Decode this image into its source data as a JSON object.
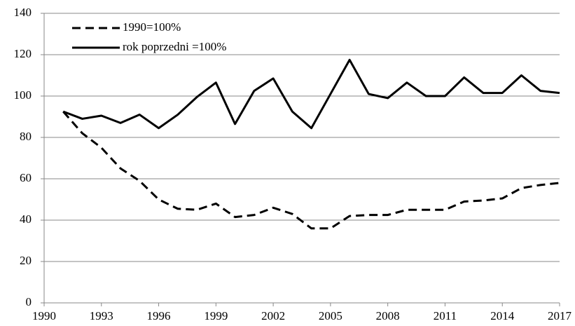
{
  "chart_data": {
    "type": "line",
    "x": [
      1991,
      1992,
      1993,
      1994,
      1995,
      1996,
      1997,
      1998,
      1999,
      2000,
      2001,
      2002,
      2003,
      2004,
      2005,
      2006,
      2007,
      2008,
      2009,
      2010,
      2011,
      2012,
      2013,
      2014,
      2015,
      2016,
      2017
    ],
    "series": [
      {
        "name": "1990=100%",
        "color": "#000000",
        "line_style": "dashed",
        "values": [
          92.5,
          82,
          75,
          65,
          59,
          50,
          45.5,
          45,
          48,
          41.5,
          42.5,
          46,
          43,
          36,
          36,
          42,
          42.5,
          42.5,
          45,
          45,
          45,
          49,
          49.5,
          50.5,
          55.5,
          57,
          58
        ]
      },
      {
        "name": "rok poprzedni =100%",
        "color": "#000000",
        "line_style": "solid",
        "values": [
          92.5,
          89,
          90.5,
          87,
          91,
          84.5,
          91,
          99.5,
          106.5,
          86.5,
          102.5,
          108.5,
          92.5,
          84.5,
          101,
          117.5,
          101,
          99,
          106.5,
          100,
          100,
          109,
          101.5,
          101.5,
          110,
          102.5,
          101.5
        ]
      }
    ],
    "xlim": [
      1990,
      2017
    ],
    "xticks": [
      1990,
      1993,
      1996,
      1999,
      2002,
      2005,
      2008,
      2011,
      2014,
      2017
    ],
    "ylim": [
      0,
      140
    ],
    "yticks": [
      0,
      20,
      40,
      60,
      80,
      100,
      120,
      140
    ],
    "grid": true,
    "legend": "upper-left"
  }
}
